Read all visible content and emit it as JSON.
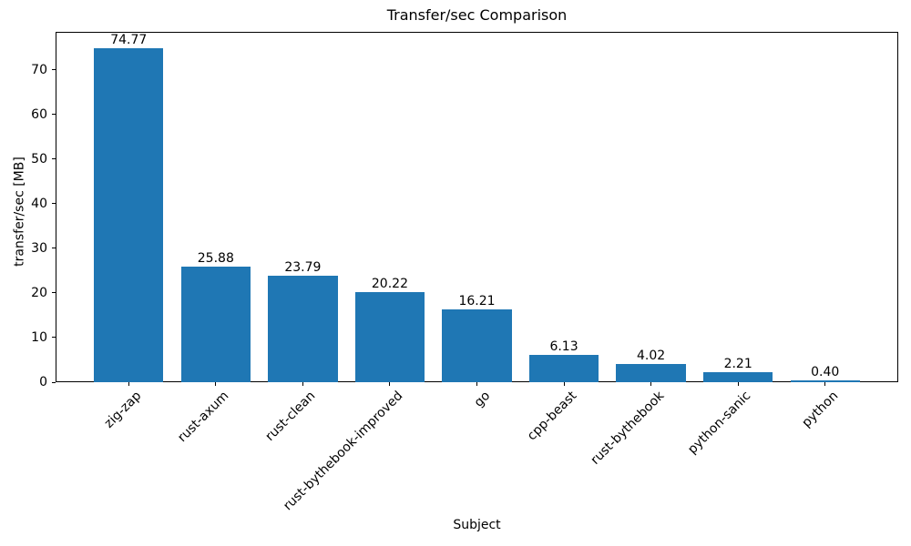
{
  "chart_data": {
    "type": "bar",
    "title": "Transfer/sec Comparison",
    "xlabel": "Subject",
    "ylabel": "transfer/sec [MB]",
    "categories": [
      "zig-zap",
      "rust-axum",
      "rust-clean",
      "rust-bythebook-improved",
      "go",
      "cpp-beast",
      "rust-bythebook",
      "python-sanic",
      "python"
    ],
    "values": [
      74.77,
      25.88,
      23.79,
      20.22,
      16.21,
      6.13,
      4.02,
      2.21,
      0.4
    ],
    "bar_labels": [
      "74.77",
      "25.88",
      "23.79",
      "20.22",
      "16.21",
      "6.13",
      "4.02",
      "2.21",
      "0.40"
    ],
    "yticks": [
      0,
      10,
      20,
      30,
      40,
      50,
      60,
      70
    ],
    "ylim": [
      0,
      78.5
    ],
    "bar_width_fraction": 0.8,
    "x_tick_rotation_deg": 45,
    "bar_color": "#1f77b4",
    "axis_color": "#000000",
    "text_color": "#000000",
    "background_color": "#ffffff",
    "grid": false,
    "legend": null
  }
}
